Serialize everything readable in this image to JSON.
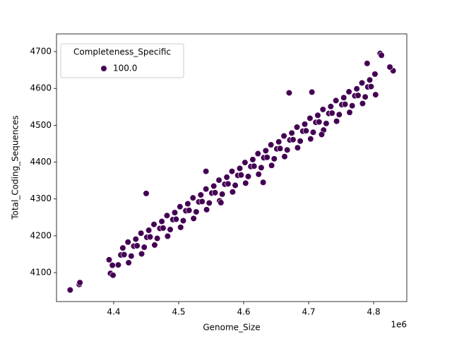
{
  "chart_data": {
    "type": "scatter",
    "xlabel": "Genome_Size",
    "ylabel": "Total_Coding_Sequences",
    "x_offset_label": "1e6",
    "legend_title": "Completeness_Specific",
    "legend": "upper left",
    "xlim": [
      4.312,
      4.851
    ],
    "ylim": [
      4021.5,
      4748
    ],
    "xticks": [
      4.4,
      4.5,
      4.6,
      4.7,
      4.8
    ],
    "yticks": [
      4100,
      4200,
      4300,
      4400,
      4500,
      4600,
      4700
    ],
    "series": [
      {
        "name": "100.0",
        "color": "#440154",
        "x": [
          4.407,
          4.411,
          4.414,
          4.416,
          4.422,
          4.423,
          4.427,
          4.431,
          4.434,
          4.436,
          4.442,
          4.443,
          4.447,
          4.451,
          4.454,
          4.456,
          4.462,
          4.463,
          4.467,
          4.471,
          4.474,
          4.476,
          4.482,
          4.483,
          4.487,
          4.491,
          4.494,
          4.496,
          4.502,
          4.503,
          4.507,
          4.511,
          4.514,
          4.516,
          4.522,
          4.523,
          4.527,
          4.531,
          4.534,
          4.536,
          4.542,
          4.543,
          4.547,
          4.551,
          4.554,
          4.556,
          4.562,
          4.563,
          4.567,
          4.571,
          4.574,
          4.576,
          4.582,
          4.583,
          4.587,
          4.591,
          4.594,
          4.596,
          4.602,
          4.603,
          4.607,
          4.611,
          4.614,
          4.616,
          4.622,
          4.623,
          4.627,
          4.631,
          4.634,
          4.636,
          4.642,
          4.643,
          4.647,
          4.651,
          4.654,
          4.656,
          4.662,
          4.663,
          4.667,
          4.671,
          4.674,
          4.676,
          4.682,
          4.683,
          4.687,
          4.691,
          4.694,
          4.696,
          4.702,
          4.703,
          4.707,
          4.711,
          4.714,
          4.716,
          4.722,
          4.723,
          4.727,
          4.731,
          4.734,
          4.736,
          4.742,
          4.743,
          4.747,
          4.751,
          4.754,
          4.756,
          4.762,
          4.763,
          4.767,
          4.771,
          4.774,
          4.776,
          4.782,
          4.783,
          4.787,
          4.791,
          4.794,
          4.796,
          4.802,
          4.803,
          4.333,
          4.347,
          4.348,
          4.393,
          4.395,
          4.399,
          4.398,
          4.81,
          4.812,
          4.83,
          4.825,
          4.79,
          4.63,
          4.565,
          4.542,
          4.45,
          4.72,
          4.705,
          4.67
        ],
        "values": [
          4121,
          4148,
          4167,
          4149,
          4183,
          4127,
          4145,
          4172,
          4191,
          4173,
          4207,
          4151,
          4169,
          4196,
          4215,
          4197,
          4231,
          4175,
          4193,
          4220,
          4239,
          4221,
          4255,
          4199,
          4217,
          4244,
          4263,
          4245,
          4279,
          4223,
          4241,
          4268,
          4287,
          4269,
          4303,
          4247,
          4265,
          4292,
          4311,
          4293,
          4327,
          4271,
          4289,
          4316,
          4335,
          4317,
          4351,
          4295,
          4313,
          4340,
          4359,
          4341,
          4375,
          4319,
          4337,
          4364,
          4383,
          4365,
          4399,
          4343,
          4361,
          4388,
          4407,
          4389,
          4423,
          4367,
          4385,
          4412,
          4431,
          4413,
          4447,
          4391,
          4409,
          4436,
          4455,
          4437,
          4471,
          4415,
          4433,
          4460,
          4479,
          4461,
          4495,
          4439,
          4457,
          4484,
          4503,
          4485,
          4519,
          4463,
          4481,
          4508,
          4527,
          4509,
          4543,
          4487,
          4505,
          4532,
          4551,
          4533,
          4567,
          4511,
          4529,
          4556,
          4575,
          4557,
          4591,
          4535,
          4553,
          4580,
          4599,
          4581,
          4615,
          4559,
          4577,
          4604,
          4623,
          4605,
          4639,
          4583,
          4053,
          4068,
          4073,
          4135,
          4098,
          4093,
          4120,
          4695,
          4690,
          4648,
          4658,
          4668,
          4345,
          4290,
          4375,
          4315,
          4475,
          4590,
          4588
        ]
      }
    ]
  }
}
